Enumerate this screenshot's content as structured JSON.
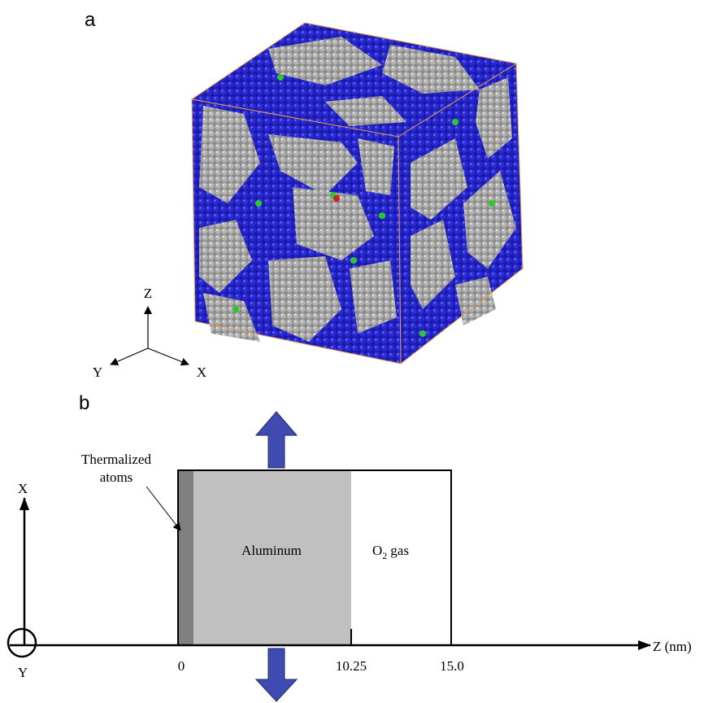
{
  "panel_a": {
    "label": "a",
    "axes": {
      "z": "Z",
      "y": "Y",
      "x": "X"
    }
  },
  "panel_b": {
    "label": "b",
    "axes": {
      "x": "X",
      "y": "Y",
      "z": "Z (nm)"
    },
    "thermalized_label": [
      "Thermalized",
      "atoms"
    ],
    "aluminum_label": "Aluminum",
    "gas_label": {
      "base": "O",
      "subscript": "2",
      "rest": "gas"
    },
    "ticks": [
      "0",
      "10.25",
      "15.0"
    ]
  }
}
